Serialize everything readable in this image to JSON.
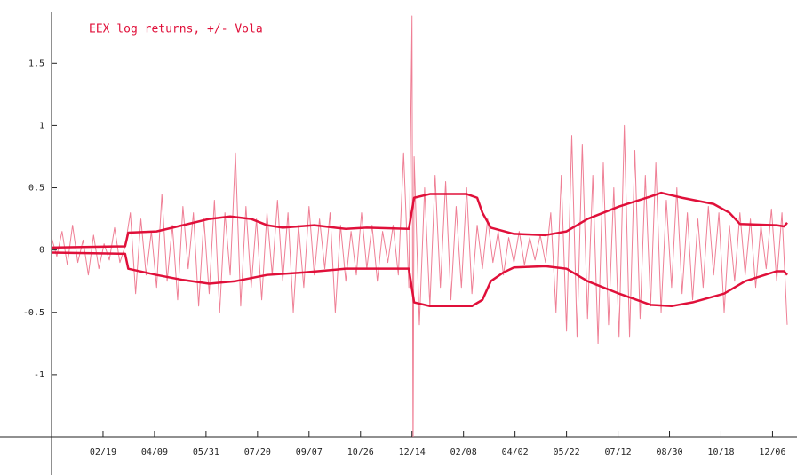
{
  "chart_data": {
    "type": "line",
    "title": "EEX log returns, +/- Vola",
    "xlim": [
      0,
      700
    ],
    "ylim": [
      -1.5,
      1.88
    ],
    "yticks": [
      -1,
      -0.5,
      0,
      0.5,
      1,
      1.5
    ],
    "xticks": [
      {
        "value": 49,
        "label": "02/19"
      },
      {
        "value": 98,
        "label": "04/09"
      },
      {
        "value": 147,
        "label": "05/31"
      },
      {
        "value": 196,
        "label": "07/20"
      },
      {
        "value": 245,
        "label": "09/07"
      },
      {
        "value": 294,
        "label": "10/26"
      },
      {
        "value": 343,
        "label": "12/14"
      },
      {
        "value": 392,
        "label": "02/08"
      },
      {
        "value": 441,
        "label": "04/02"
      },
      {
        "value": 490,
        "label": "05/22"
      },
      {
        "value": 539,
        "label": "07/12"
      },
      {
        "value": 588,
        "label": "08/30"
      },
      {
        "value": 637,
        "label": "10/18"
      },
      {
        "value": 686,
        "label": "12/06"
      }
    ],
    "series": [
      {
        "color": "#ef7f95",
        "width": 1,
        "x": [
          0,
          5,
          10,
          15,
          20,
          25,
          30,
          35,
          40,
          45,
          50,
          55,
          60,
          65,
          70,
          75,
          80,
          85,
          90,
          95,
          100,
          105,
          110,
          115,
          120,
          125,
          130,
          135,
          140,
          145,
          150,
          155,
          160,
          165,
          170,
          175,
          180,
          185,
          190,
          195,
          200,
          205,
          210,
          215,
          220,
          225,
          230,
          235,
          240,
          245,
          250,
          255,
          260,
          265,
          270,
          275,
          280,
          285,
          290,
          295,
          300,
          305,
          310,
          315,
          320,
          325,
          330,
          335,
          340,
          343,
          344,
          345,
          350,
          355,
          360,
          365,
          370,
          375,
          380,
          385,
          390,
          395,
          400,
          405,
          410,
          415,
          420,
          425,
          430,
          435,
          440,
          445,
          450,
          455,
          460,
          465,
          470,
          475,
          480,
          485,
          490,
          495,
          500,
          505,
          510,
          515,
          520,
          525,
          530,
          535,
          540,
          545,
          550,
          555,
          560,
          565,
          570,
          575,
          580,
          585,
          590,
          595,
          600,
          605,
          610,
          615,
          620,
          625,
          630,
          635,
          640,
          645,
          650,
          655,
          660,
          665,
          670,
          675,
          680,
          685,
          690,
          695,
          700
        ],
        "values": [
          0.1,
          -0.05,
          0.15,
          -0.12,
          0.2,
          -0.1,
          0.08,
          -0.2,
          0.12,
          -0.15,
          0.05,
          -0.08,
          0.18,
          -0.1,
          0.03,
          0.3,
          -0.35,
          0.25,
          -0.2,
          0.15,
          -0.3,
          0.45,
          -0.25,
          0.2,
          -0.4,
          0.35,
          -0.15,
          0.3,
          -0.45,
          0.25,
          -0.35,
          0.4,
          -0.5,
          0.3,
          -0.2,
          0.78,
          -0.45,
          0.35,
          -0.3,
          0.25,
          -0.4,
          0.3,
          -0.2,
          0.4,
          -0.25,
          0.3,
          -0.5,
          0.2,
          -0.3,
          0.35,
          -0.2,
          0.25,
          -0.15,
          0.3,
          -0.5,
          0.2,
          -0.25,
          0.15,
          -0.2,
          0.3,
          -0.15,
          0.2,
          -0.25,
          0.15,
          -0.1,
          0.2,
          -0.2,
          0.78,
          -0.3,
          1.88,
          -1.75,
          0.75,
          -0.6,
          0.5,
          -0.45,
          0.6,
          -0.3,
          0.55,
          -0.4,
          0.35,
          -0.3,
          0.5,
          -0.35,
          0.2,
          -0.15,
          0.25,
          -0.1,
          0.15,
          -0.2,
          0.1,
          -0.1,
          0.15,
          -0.12,
          0.1,
          -0.08,
          0.12,
          -0.1,
          0.3,
          -0.5,
          0.6,
          -0.65,
          0.92,
          -0.7,
          0.85,
          -0.55,
          0.6,
          -0.75,
          0.7,
          -0.6,
          0.5,
          -0.7,
          1.0,
          -0.7,
          0.8,
          -0.55,
          0.6,
          -0.45,
          0.7,
          -0.5,
          0.4,
          -0.3,
          0.5,
          -0.35,
          0.3,
          -0.4,
          0.25,
          -0.3,
          0.35,
          -0.2,
          0.3,
          -0.5,
          0.2,
          -0.25,
          0.3,
          -0.2,
          0.25,
          -0.3,
          0.2,
          -0.15,
          0.33,
          -0.25,
          0.3,
          -0.6
        ]
      },
      {
        "color": "#e0103a",
        "width": 2.5,
        "x": [
          0,
          70,
          73,
          100,
          125,
          150,
          170,
          190,
          205,
          220,
          250,
          280,
          300,
          340,
          345,
          360,
          395,
          405,
          410,
          418,
          440,
          470,
          490,
          510,
          540,
          570,
          580,
          600,
          630,
          645,
          655,
          690,
          697,
          700
        ],
        "values": [
          0.02,
          0.03,
          0.14,
          0.15,
          0.2,
          0.25,
          0.27,
          0.25,
          0.2,
          0.18,
          0.2,
          0.17,
          0.18,
          0.17,
          0.42,
          0.45,
          0.45,
          0.42,
          0.3,
          0.18,
          0.13,
          0.12,
          0.15,
          0.25,
          0.35,
          0.43,
          0.46,
          0.42,
          0.37,
          0.3,
          0.21,
          0.2,
          0.19,
          0.22
        ]
      },
      {
        "color": "#e0103a",
        "width": 2.5,
        "x": [
          0,
          70,
          73,
          100,
          125,
          150,
          175,
          205,
          240,
          280,
          340,
          345,
          360,
          400,
          410,
          418,
          430,
          440,
          470,
          490,
          510,
          540,
          570,
          590,
          610,
          640,
          660,
          690,
          697,
          700
        ],
        "values": [
          -0.02,
          -0.03,
          -0.15,
          -0.2,
          -0.24,
          -0.27,
          -0.25,
          -0.2,
          -0.18,
          -0.15,
          -0.15,
          -0.42,
          -0.45,
          -0.45,
          -0.4,
          -0.25,
          -0.18,
          -0.14,
          -0.13,
          -0.15,
          -0.25,
          -0.35,
          -0.44,
          -0.45,
          -0.42,
          -0.35,
          -0.25,
          -0.17,
          -0.17,
          -0.2
        ]
      }
    ]
  }
}
